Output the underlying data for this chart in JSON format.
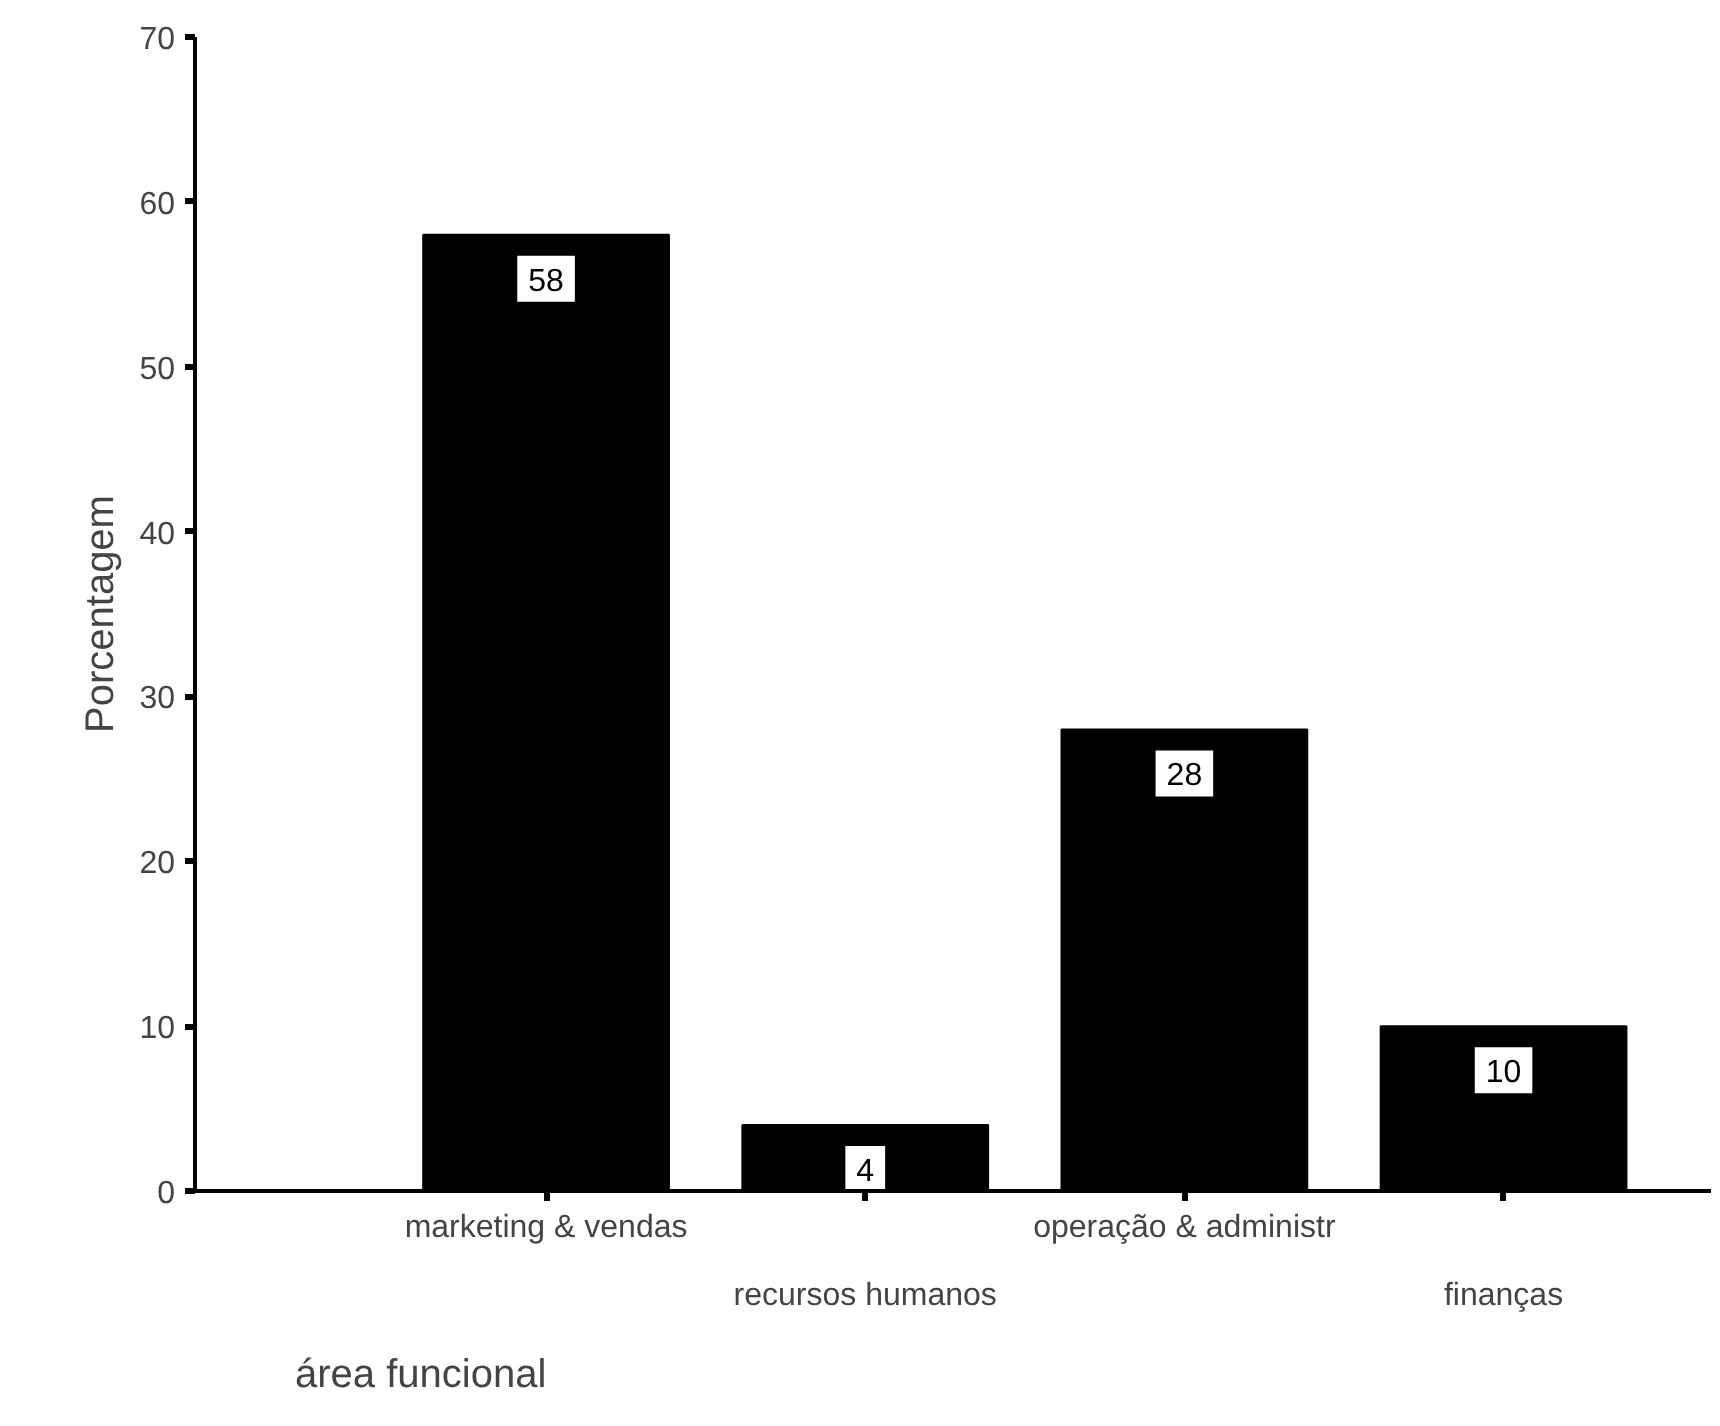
{
  "chart_data": {
    "type": "bar",
    "xlabel": "área funcional",
    "ylabel": "Porcentagem",
    "categories": [
      "marketing & vendas",
      "recursos humanos",
      "operação & administr",
      "finanças"
    ],
    "values": [
      58,
      4,
      28,
      10
    ],
    "color": "#000000",
    "ylim": [
      0,
      70
    ],
    "yticks": [
      0,
      10,
      20,
      30,
      40,
      50,
      60,
      70
    ],
    "grid": false,
    "data_labels": true
  }
}
